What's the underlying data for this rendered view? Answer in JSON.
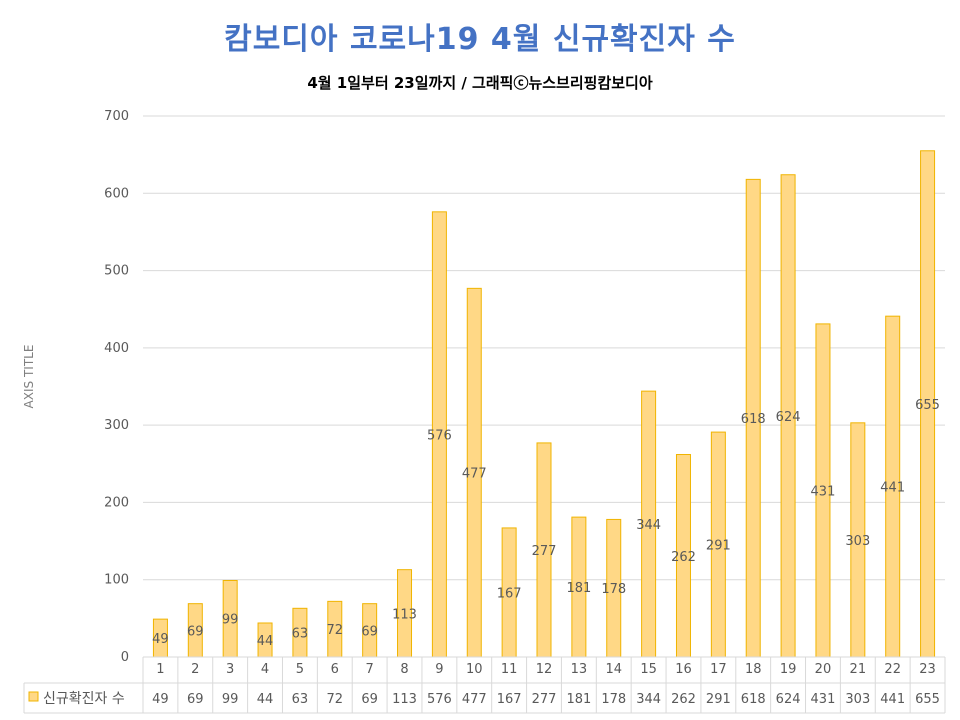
{
  "chart_data": {
    "type": "bar",
    "title": "캄보디아 코로나19 4월 신규확진자 수",
    "subtitle": "4월 1일부터 23일까지 / 그래픽ⓒ뉴스브리핑캄보디아",
    "ylabel": "AXIS TITLE",
    "xlabel": "",
    "ylim": [
      0,
      700
    ],
    "yticks": [
      0,
      100,
      200,
      300,
      400,
      500,
      600,
      700
    ],
    "categories": [
      "1",
      "2",
      "3",
      "4",
      "5",
      "6",
      "7",
      "8",
      "9",
      "10",
      "11",
      "12",
      "13",
      "14",
      "15",
      "16",
      "17",
      "18",
      "19",
      "20",
      "21",
      "22",
      "23"
    ],
    "series": [
      {
        "name": "신규확진자 수",
        "values": [
          49,
          69,
          99,
          44,
          63,
          72,
          69,
          113,
          576,
          477,
          167,
          277,
          181,
          178,
          344,
          262,
          291,
          618,
          624,
          431,
          303,
          441,
          655
        ]
      }
    ],
    "grid": true,
    "data_table": true,
    "colors": {
      "bar_fill": "#ffd886",
      "bar_stroke": "#f0b400",
      "grid": "#d9d9d9",
      "label": "#595959",
      "title": "#4472c4"
    }
  }
}
